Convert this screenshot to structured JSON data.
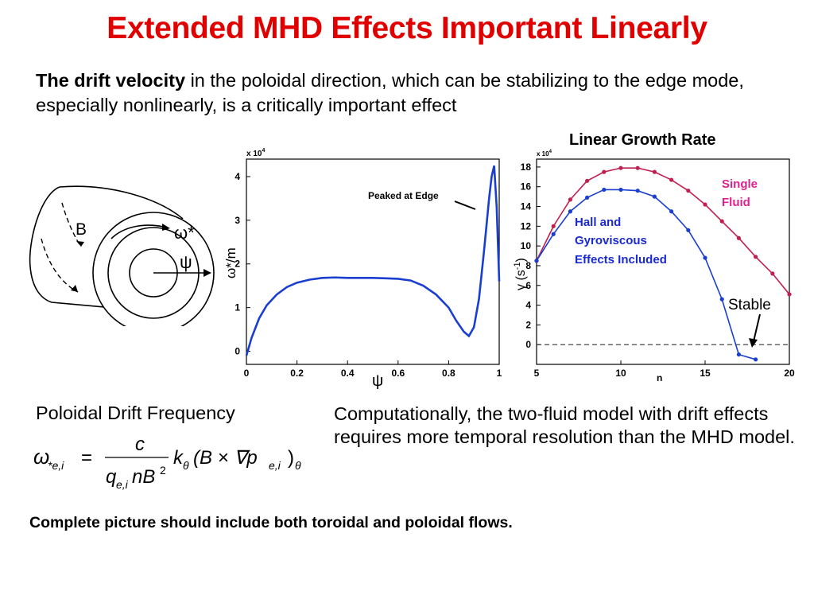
{
  "slide": {
    "title": "Extended MHD Effects Important Linearly",
    "intro_bold": "The drift velocity",
    "intro_rest": " in the poloidal direction, which can be stabilizing to the edge mode, especially nonlinearly, is a critically important effect",
    "growth_title": "Linear Growth Rate",
    "poloidal_label": "Poloidal Drift Frequency",
    "comp_text": "Computationally, the two-fluid model with drift effects requires more temporal resolution than the MHD model.",
    "bottom_note": "Complete picture should include both toroidal and poloidal flows."
  },
  "diagram": {
    "b_label": "B",
    "omega_label": "ω*",
    "psi_label": "ψ"
  },
  "formula": {
    "lhs": "ω",
    "lhs_sub": "*e,i",
    "eq": "=",
    "num": "c",
    "den_q": "q",
    "den_sub": "e,i",
    "den_nb": "nB",
    "den_sup": "2",
    "k": "k",
    "k_sub": "θ",
    "paren": "(B × ∇p",
    "p_sub": "e,i",
    "close": ")",
    "close_sub": "θ"
  },
  "chart_data": [
    {
      "type": "line",
      "title": "",
      "xlabel": "ψ",
      "ylabel": "ω*/m",
      "multiplier": "x 10",
      "multiplier_exp": "4",
      "xlim": [
        0,
        1
      ],
      "ylim": [
        -0.3,
        4.4
      ],
      "xticks": [
        "0",
        "0.2",
        "0.4",
        "0.6",
        "0.8",
        "1"
      ],
      "yticks": [
        "0",
        "1",
        "2",
        "3",
        "4"
      ],
      "annotation": "Peaked at Edge",
      "series": [
        {
          "name": "",
          "color": "#1a3fd0",
          "x": [
            0,
            0.02,
            0.05,
            0.08,
            0.12,
            0.16,
            0.2,
            0.25,
            0.3,
            0.35,
            0.4,
            0.45,
            0.5,
            0.55,
            0.6,
            0.65,
            0.7,
            0.75,
            0.8,
            0.83,
            0.86,
            0.88,
            0.9,
            0.92,
            0.94,
            0.96,
            0.97,
            0.98,
            0.99,
            1.0
          ],
          "y": [
            -0.1,
            0.3,
            0.75,
            1.05,
            1.3,
            1.47,
            1.57,
            1.64,
            1.68,
            1.69,
            1.68,
            1.68,
            1.68,
            1.67,
            1.66,
            1.62,
            1.5,
            1.3,
            1.0,
            0.7,
            0.45,
            0.35,
            0.55,
            1.2,
            2.3,
            3.5,
            4.0,
            4.25,
            3.3,
            1.6
          ]
        }
      ]
    },
    {
      "type": "line",
      "title": "Linear Growth Rate",
      "xlabel": "n",
      "ylabel": "γ (s-1)",
      "ylabel_sup": "-1",
      "multiplier": "x 10",
      "multiplier_exp": "4",
      "xlim": [
        5,
        20
      ],
      "ylim": [
        -2,
        18.8
      ],
      "xticks": [
        "5",
        "10",
        "15",
        "20"
      ],
      "yticks": [
        "0",
        "2",
        "4",
        "6",
        "8",
        "10",
        "12",
        "14",
        "16",
        "18"
      ],
      "stable_label": "Stable",
      "series": [
        {
          "name": "Single Fluid",
          "name_line1": "Single",
          "name_line2": "Fluid",
          "color": "#c02050",
          "x": [
            5,
            6,
            7,
            8,
            9,
            10,
            11,
            12,
            13,
            14,
            15,
            16,
            17,
            18,
            19,
            20
          ],
          "y": [
            8.5,
            12,
            14.7,
            16.6,
            17.5,
            17.9,
            17.9,
            17.5,
            16.7,
            15.6,
            14.2,
            12.5,
            10.8,
            8.9,
            7.2,
            5.1
          ]
        },
        {
          "name": "Hall and Gyroviscous Effects Included",
          "name_line1": "Hall and",
          "name_line2": "Gyroviscous",
          "name_line3": "Effects Included",
          "color": "#1a3fd0",
          "x": [
            5,
            6,
            7,
            8,
            9,
            10,
            11,
            12,
            13,
            14,
            15,
            16,
            17,
            18
          ],
          "y": [
            8.5,
            11.2,
            13.5,
            14.9,
            15.7,
            15.7,
            15.6,
            15.0,
            13.5,
            11.6,
            8.8,
            4.6,
            -1.0,
            -1.5
          ]
        }
      ]
    }
  ]
}
